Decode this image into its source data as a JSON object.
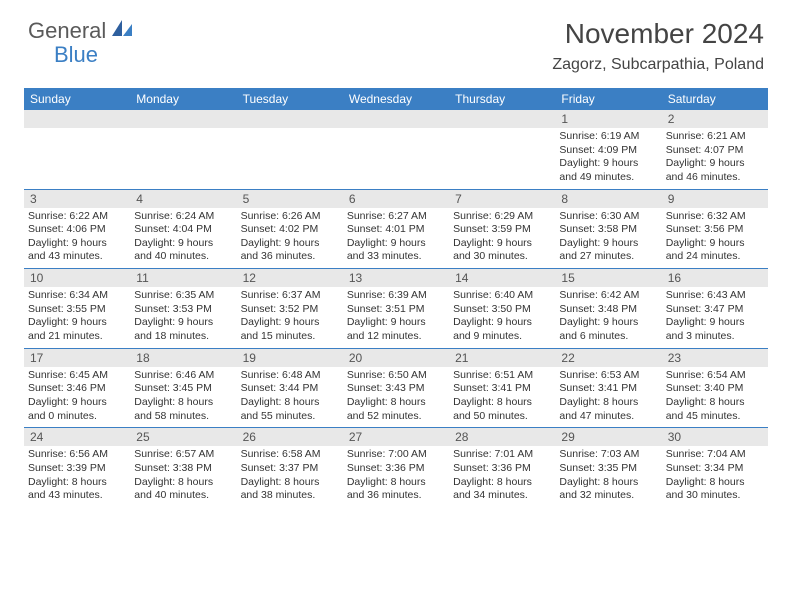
{
  "brand": {
    "general": "General",
    "blue": "Blue"
  },
  "title": "November 2024",
  "location": "Zagorz, Subcarpathia, Poland",
  "weekdays": [
    "Sunday",
    "Monday",
    "Tuesday",
    "Wednesday",
    "Thursday",
    "Friday",
    "Saturday"
  ],
  "colors": {
    "header_bar": "#3b7fc4",
    "daynum_bg": "#e8e8e8",
    "text": "#333333",
    "logo_gray": "#5a5a5a",
    "logo_blue": "#3b7fc4"
  },
  "weeks": [
    [
      {
        "n": "",
        "sunrise": "",
        "sunset": "",
        "daylight": ""
      },
      {
        "n": "",
        "sunrise": "",
        "sunset": "",
        "daylight": ""
      },
      {
        "n": "",
        "sunrise": "",
        "sunset": "",
        "daylight": ""
      },
      {
        "n": "",
        "sunrise": "",
        "sunset": "",
        "daylight": ""
      },
      {
        "n": "",
        "sunrise": "",
        "sunset": "",
        "daylight": ""
      },
      {
        "n": "1",
        "sunrise": "Sunrise: 6:19 AM",
        "sunset": "Sunset: 4:09 PM",
        "daylight": "Daylight: 9 hours and 49 minutes."
      },
      {
        "n": "2",
        "sunrise": "Sunrise: 6:21 AM",
        "sunset": "Sunset: 4:07 PM",
        "daylight": "Daylight: 9 hours and 46 minutes."
      }
    ],
    [
      {
        "n": "3",
        "sunrise": "Sunrise: 6:22 AM",
        "sunset": "Sunset: 4:06 PM",
        "daylight": "Daylight: 9 hours and 43 minutes."
      },
      {
        "n": "4",
        "sunrise": "Sunrise: 6:24 AM",
        "sunset": "Sunset: 4:04 PM",
        "daylight": "Daylight: 9 hours and 40 minutes."
      },
      {
        "n": "5",
        "sunrise": "Sunrise: 6:26 AM",
        "sunset": "Sunset: 4:02 PM",
        "daylight": "Daylight: 9 hours and 36 minutes."
      },
      {
        "n": "6",
        "sunrise": "Sunrise: 6:27 AM",
        "sunset": "Sunset: 4:01 PM",
        "daylight": "Daylight: 9 hours and 33 minutes."
      },
      {
        "n": "7",
        "sunrise": "Sunrise: 6:29 AM",
        "sunset": "Sunset: 3:59 PM",
        "daylight": "Daylight: 9 hours and 30 minutes."
      },
      {
        "n": "8",
        "sunrise": "Sunrise: 6:30 AM",
        "sunset": "Sunset: 3:58 PM",
        "daylight": "Daylight: 9 hours and 27 minutes."
      },
      {
        "n": "9",
        "sunrise": "Sunrise: 6:32 AM",
        "sunset": "Sunset: 3:56 PM",
        "daylight": "Daylight: 9 hours and 24 minutes."
      }
    ],
    [
      {
        "n": "10",
        "sunrise": "Sunrise: 6:34 AM",
        "sunset": "Sunset: 3:55 PM",
        "daylight": "Daylight: 9 hours and 21 minutes."
      },
      {
        "n": "11",
        "sunrise": "Sunrise: 6:35 AM",
        "sunset": "Sunset: 3:53 PM",
        "daylight": "Daylight: 9 hours and 18 minutes."
      },
      {
        "n": "12",
        "sunrise": "Sunrise: 6:37 AM",
        "sunset": "Sunset: 3:52 PM",
        "daylight": "Daylight: 9 hours and 15 minutes."
      },
      {
        "n": "13",
        "sunrise": "Sunrise: 6:39 AM",
        "sunset": "Sunset: 3:51 PM",
        "daylight": "Daylight: 9 hours and 12 minutes."
      },
      {
        "n": "14",
        "sunrise": "Sunrise: 6:40 AM",
        "sunset": "Sunset: 3:50 PM",
        "daylight": "Daylight: 9 hours and 9 minutes."
      },
      {
        "n": "15",
        "sunrise": "Sunrise: 6:42 AM",
        "sunset": "Sunset: 3:48 PM",
        "daylight": "Daylight: 9 hours and 6 minutes."
      },
      {
        "n": "16",
        "sunrise": "Sunrise: 6:43 AM",
        "sunset": "Sunset: 3:47 PM",
        "daylight": "Daylight: 9 hours and 3 minutes."
      }
    ],
    [
      {
        "n": "17",
        "sunrise": "Sunrise: 6:45 AM",
        "sunset": "Sunset: 3:46 PM",
        "daylight": "Daylight: 9 hours and 0 minutes."
      },
      {
        "n": "18",
        "sunrise": "Sunrise: 6:46 AM",
        "sunset": "Sunset: 3:45 PM",
        "daylight": "Daylight: 8 hours and 58 minutes."
      },
      {
        "n": "19",
        "sunrise": "Sunrise: 6:48 AM",
        "sunset": "Sunset: 3:44 PM",
        "daylight": "Daylight: 8 hours and 55 minutes."
      },
      {
        "n": "20",
        "sunrise": "Sunrise: 6:50 AM",
        "sunset": "Sunset: 3:43 PM",
        "daylight": "Daylight: 8 hours and 52 minutes."
      },
      {
        "n": "21",
        "sunrise": "Sunrise: 6:51 AM",
        "sunset": "Sunset: 3:41 PM",
        "daylight": "Daylight: 8 hours and 50 minutes."
      },
      {
        "n": "22",
        "sunrise": "Sunrise: 6:53 AM",
        "sunset": "Sunset: 3:41 PM",
        "daylight": "Daylight: 8 hours and 47 minutes."
      },
      {
        "n": "23",
        "sunrise": "Sunrise: 6:54 AM",
        "sunset": "Sunset: 3:40 PM",
        "daylight": "Daylight: 8 hours and 45 minutes."
      }
    ],
    [
      {
        "n": "24",
        "sunrise": "Sunrise: 6:56 AM",
        "sunset": "Sunset: 3:39 PM",
        "daylight": "Daylight: 8 hours and 43 minutes."
      },
      {
        "n": "25",
        "sunrise": "Sunrise: 6:57 AM",
        "sunset": "Sunset: 3:38 PM",
        "daylight": "Daylight: 8 hours and 40 minutes."
      },
      {
        "n": "26",
        "sunrise": "Sunrise: 6:58 AM",
        "sunset": "Sunset: 3:37 PM",
        "daylight": "Daylight: 8 hours and 38 minutes."
      },
      {
        "n": "27",
        "sunrise": "Sunrise: 7:00 AM",
        "sunset": "Sunset: 3:36 PM",
        "daylight": "Daylight: 8 hours and 36 minutes."
      },
      {
        "n": "28",
        "sunrise": "Sunrise: 7:01 AM",
        "sunset": "Sunset: 3:36 PM",
        "daylight": "Daylight: 8 hours and 34 minutes."
      },
      {
        "n": "29",
        "sunrise": "Sunrise: 7:03 AM",
        "sunset": "Sunset: 3:35 PM",
        "daylight": "Daylight: 8 hours and 32 minutes."
      },
      {
        "n": "30",
        "sunrise": "Sunrise: 7:04 AM",
        "sunset": "Sunset: 3:34 PM",
        "daylight": "Daylight: 8 hours and 30 minutes."
      }
    ]
  ]
}
